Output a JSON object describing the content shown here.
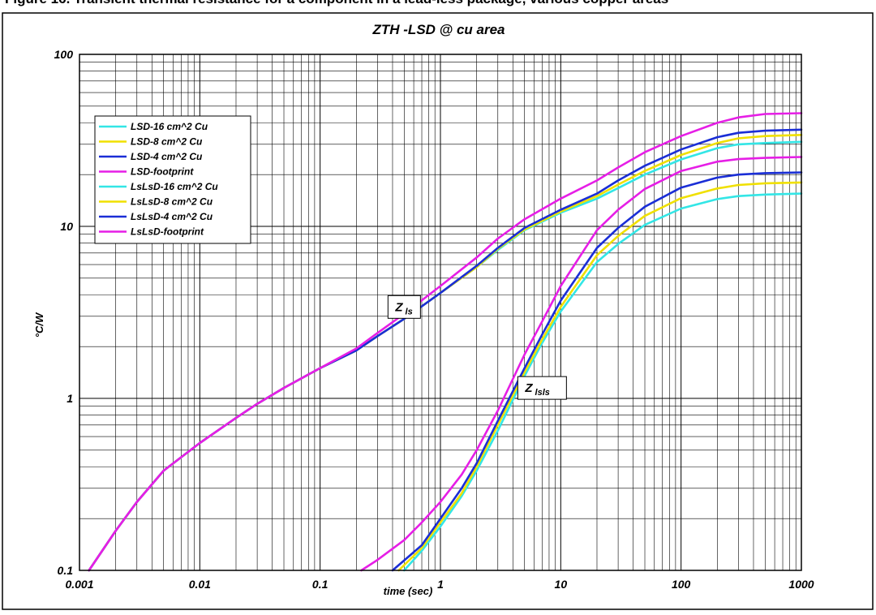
{
  "page_heading": "Figure 16. Transient thermal resistance for a component in a lead-less package, various copper areas",
  "chart_data": {
    "type": "line",
    "title": "ZTH -LSD @ cu area",
    "xlabel": "time (sec)",
    "ylabel": "°C/W",
    "x_scale": "log",
    "y_scale": "log",
    "xlim": [
      0.001,
      1000
    ],
    "ylim": [
      0.1,
      100
    ],
    "x_ticks": [
      "0.001",
      "0.01",
      "0.1",
      "1",
      "10",
      "100",
      "1000"
    ],
    "y_ticks": [
      "0.1",
      "1",
      "10",
      "100"
    ],
    "grid": true,
    "legend_position": "top-left",
    "annotations": [
      {
        "main": "Z",
        "sub": "ls",
        "x": 0.5,
        "y": 3.4
      },
      {
        "main": "Z",
        "sub": "lsls",
        "x": 7,
        "y": 1.15
      }
    ],
    "series": [
      {
        "name": "LSD-16 cm^2 Cu",
        "color": "#33e6e6",
        "x": [
          0.0012,
          0.002,
          0.003,
          0.005,
          0.01,
          0.02,
          0.03,
          0.05,
          0.1,
          0.2,
          0.3,
          0.5,
          1,
          2,
          3,
          5,
          10,
          20,
          30,
          50,
          100,
          200,
          300,
          500,
          1000
        ],
        "y": [
          0.1,
          0.17,
          0.25,
          0.38,
          0.55,
          0.77,
          0.93,
          1.15,
          1.5,
          1.9,
          2.3,
          2.9,
          4.1,
          5.8,
          7.3,
          9.5,
          12,
          14.5,
          16.7,
          20,
          24.5,
          28.5,
          30,
          30.5,
          31
        ]
      },
      {
        "name": "LSD-8 cm^2 Cu",
        "color": "#f0e000",
        "x": [
          0.0012,
          0.002,
          0.003,
          0.005,
          0.01,
          0.02,
          0.03,
          0.05,
          0.1,
          0.2,
          0.3,
          0.5,
          1,
          2,
          3,
          5,
          10,
          20,
          30,
          50,
          100,
          200,
          300,
          500,
          1000
        ],
        "y": [
          0.1,
          0.17,
          0.25,
          0.38,
          0.55,
          0.77,
          0.93,
          1.15,
          1.5,
          1.9,
          2.3,
          2.9,
          4.1,
          5.8,
          7.4,
          9.6,
          12.2,
          15,
          17.5,
          21,
          26,
          30.5,
          32.5,
          33.5,
          34
        ]
      },
      {
        "name": "LSD-4 cm^2 Cu",
        "color": "#1a2ed6",
        "x": [
          0.0012,
          0.002,
          0.003,
          0.005,
          0.01,
          0.02,
          0.03,
          0.05,
          0.1,
          0.2,
          0.3,
          0.5,
          1,
          2,
          3,
          5,
          10,
          20,
          30,
          50,
          100,
          200,
          300,
          500,
          1000
        ],
        "y": [
          0.1,
          0.17,
          0.25,
          0.38,
          0.55,
          0.77,
          0.93,
          1.15,
          1.5,
          1.9,
          2.3,
          2.9,
          4.1,
          5.9,
          7.5,
          9.8,
          12.5,
          15.5,
          18.5,
          22.5,
          28,
          33,
          35,
          36,
          36.5
        ]
      },
      {
        "name": "LSD-footprint",
        "color": "#e61ee6",
        "x": [
          0.0012,
          0.002,
          0.003,
          0.005,
          0.01,
          0.02,
          0.03,
          0.05,
          0.1,
          0.2,
          0.3,
          0.5,
          1,
          2,
          3,
          5,
          10,
          20,
          30,
          50,
          100,
          200,
          300,
          500,
          1000
        ],
        "y": [
          0.1,
          0.17,
          0.25,
          0.38,
          0.55,
          0.77,
          0.93,
          1.15,
          1.5,
          1.95,
          2.4,
          3.1,
          4.5,
          6.6,
          8.5,
          11,
          14.5,
          18.5,
          22,
          27,
          33.5,
          40,
          43,
          45,
          45.5
        ]
      },
      {
        "name": "LsLsD-16 cm^2 Cu",
        "color": "#33e6e6",
        "x": [
          0.5,
          0.7,
          1,
          1.5,
          2,
          3,
          5,
          7,
          10,
          20,
          30,
          50,
          100,
          200,
          300,
          500,
          1000
        ],
        "y": [
          0.1,
          0.13,
          0.18,
          0.27,
          0.38,
          0.65,
          1.35,
          2.1,
          3.2,
          6.2,
          7.9,
          10.2,
          12.7,
          14.4,
          15,
          15.3,
          15.5
        ]
      },
      {
        "name": "LsLsD-8 cm^2 Cu",
        "color": "#f0e000",
        "x": [
          0.45,
          0.7,
          1,
          1.5,
          2,
          3,
          5,
          7,
          10,
          20,
          30,
          50,
          100,
          200,
          300,
          500,
          1000
        ],
        "y": [
          0.1,
          0.135,
          0.19,
          0.28,
          0.4,
          0.7,
          1.42,
          2.2,
          3.4,
          6.8,
          8.8,
          11.5,
          14.6,
          16.6,
          17.4,
          17.8,
          18
        ]
      },
      {
        "name": "LsLsD-4 cm^2 Cu",
        "color": "#1a2ed6",
        "x": [
          0.4,
          0.7,
          1,
          1.5,
          2,
          3,
          5,
          7,
          10,
          20,
          30,
          50,
          100,
          200,
          300,
          500,
          1000
        ],
        "y": [
          0.1,
          0.14,
          0.2,
          0.3,
          0.42,
          0.74,
          1.5,
          2.35,
          3.7,
          7.5,
          9.8,
          13,
          16.8,
          19.2,
          20,
          20.4,
          20.6
        ]
      },
      {
        "name": "LsLsD-footprint",
        "color": "#e61ee6",
        "x": [
          0.22,
          0.3,
          0.5,
          0.7,
          1,
          1.5,
          2,
          3,
          5,
          7,
          10,
          20,
          30,
          50,
          100,
          200,
          300,
          500,
          1000
        ],
        "y": [
          0.1,
          0.115,
          0.15,
          0.19,
          0.25,
          0.36,
          0.5,
          0.85,
          1.8,
          2.8,
          4.5,
          9.5,
          12.5,
          16.5,
          21,
          23.8,
          24.6,
          25,
          25.3
        ]
      }
    ]
  }
}
